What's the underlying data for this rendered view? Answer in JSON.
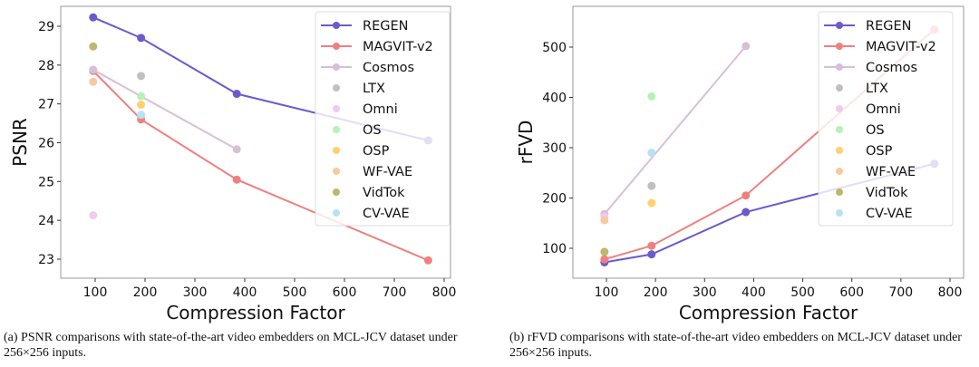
{
  "chart_data": [
    {
      "type": "line",
      "title": "",
      "xlabel": "Compression Factor",
      "ylabel": "PSNR",
      "xlim": [
        40,
        810
      ],
      "ylim": [
        22.5,
        29.5
      ],
      "xticks": [
        100,
        200,
        300,
        400,
        500,
        600,
        700,
        800
      ],
      "yticks": [
        23,
        24,
        25,
        26,
        27,
        28,
        29
      ],
      "legend": "top-right",
      "grid": false,
      "series": [
        {
          "name": "REGEN",
          "color": "#6a5acd",
          "line": true,
          "x": [
            96,
            192,
            384,
            768
          ],
          "y": [
            29.23,
            28.7,
            27.26,
            26.06
          ]
        },
        {
          "name": "MAGVIT-v2",
          "color": "#f08080",
          "line": true,
          "x": [
            96,
            192,
            384,
            768
          ],
          "y": [
            27.85,
            26.6,
            25.05,
            22.97
          ]
        },
        {
          "name": "Cosmos",
          "color": "#d8bfd8",
          "line": true,
          "x": [
            96,
            384
          ],
          "y": [
            27.88,
            25.83
          ]
        },
        {
          "name": "LTX",
          "color": "#c0c0c0",
          "line": false,
          "x": [
            192
          ],
          "y": [
            27.72
          ]
        },
        {
          "name": "Omni",
          "color": "#eecbef",
          "line": false,
          "x": [
            96
          ],
          "y": [
            24.13
          ]
        },
        {
          "name": "OS",
          "color": "#b8f0b8",
          "line": false,
          "x": [
            192
          ],
          "y": [
            27.2
          ]
        },
        {
          "name": "OSP",
          "color": "#ffd070",
          "line": false,
          "x": [
            192
          ],
          "y": [
            26.98
          ]
        },
        {
          "name": "WF-VAE",
          "color": "#f8c8a0",
          "line": false,
          "x": [
            96
          ],
          "y": [
            27.57
          ]
        },
        {
          "name": "VidTok",
          "color": "#bdb76b",
          "line": false,
          "x": [
            96
          ],
          "y": [
            28.48
          ]
        },
        {
          "name": "CV-VAE",
          "color": "#b8e2f2",
          "line": false,
          "x": [
            192
          ],
          "y": [
            26.72
          ]
        }
      ]
    },
    {
      "type": "line",
      "title": "",
      "xlabel": "Compression Factor",
      "ylabel": "rFVD",
      "xlim": [
        40,
        810
      ],
      "ylim": [
        30,
        560
      ],
      "xticks": [
        100,
        200,
        300,
        400,
        500,
        600,
        700,
        800
      ],
      "yticks": [
        100,
        200,
        300,
        400,
        500
      ],
      "legend": "top-right",
      "grid": false,
      "series": [
        {
          "name": "REGEN",
          "color": "#6a5acd",
          "line": true,
          "x": [
            96,
            192,
            384,
            768
          ],
          "y": [
            72,
            88,
            172,
            268
          ]
        },
        {
          "name": "MAGVIT-v2",
          "color": "#f08080",
          "line": true,
          "x": [
            96,
            192,
            384,
            768
          ],
          "y": [
            78,
            105,
            205,
            535
          ]
        },
        {
          "name": "Cosmos",
          "color": "#d8bfd8",
          "line": true,
          "x": [
            96,
            384
          ],
          "y": [
            168,
            502
          ]
        },
        {
          "name": "LTX",
          "color": "#c0c0c0",
          "line": false,
          "x": [
            192
          ],
          "y": [
            224
          ]
        },
        {
          "name": "Omni",
          "color": "#eecbef",
          "line": false,
          "x": [
            96
          ],
          "y": [
            163
          ]
        },
        {
          "name": "OS",
          "color": "#b8f0b8",
          "line": false,
          "x": [
            192
          ],
          "y": [
            402
          ]
        },
        {
          "name": "OSP",
          "color": "#ffd070",
          "line": false,
          "x": [
            192
          ],
          "y": [
            190
          ]
        },
        {
          "name": "WF-VAE",
          "color": "#f8c8a0",
          "line": false,
          "x": [
            96
          ],
          "y": [
            156
          ]
        },
        {
          "name": "VidTok",
          "color": "#bdb76b",
          "line": false,
          "x": [
            96
          ],
          "y": [
            93
          ]
        },
        {
          "name": "CV-VAE",
          "color": "#b8e2f2",
          "line": false,
          "x": [
            192
          ],
          "y": [
            290
          ]
        }
      ]
    }
  ],
  "captions": [
    "(a) PSNR comparisons with state-of-the-art video embedders on MCL-JCV dataset under 256×256 inputs.",
    "(b) rFVD comparisons with state-of-the-art video embedders on MCL-JCV dataset under 256×256 inputs."
  ]
}
